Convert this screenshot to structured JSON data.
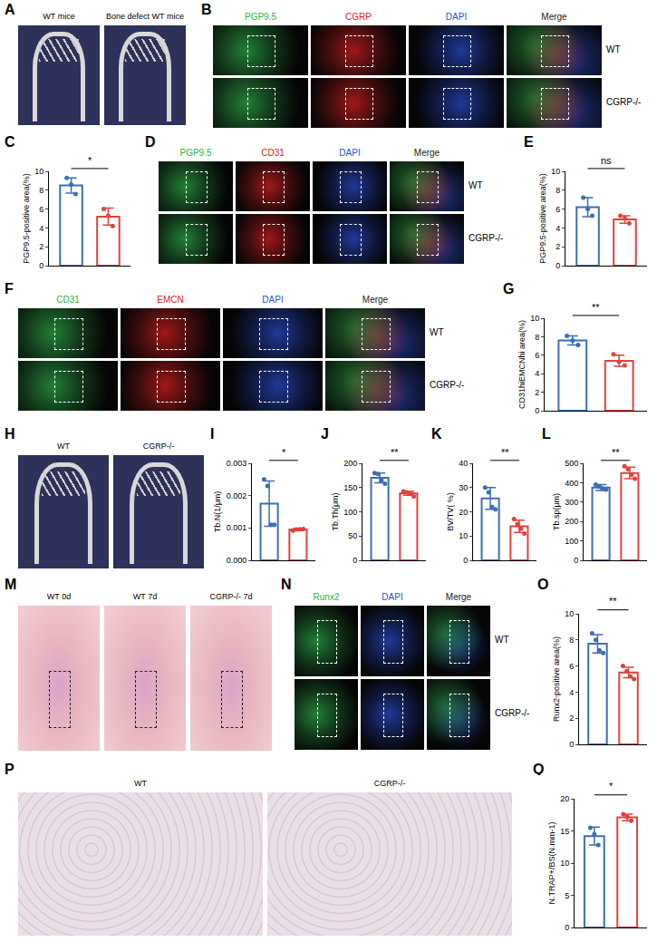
{
  "image_panels": [
    {
      "panel": "A",
      "kind": "microct",
      "labels": [
        "WT mice",
        "Bone defect WT mice"
      ]
    },
    {
      "panel": "B",
      "kind": "fluorescence",
      "channels": [
        {
          "name": "PGP9.5",
          "color": "#2db34a"
        },
        {
          "name": "CGRP",
          "color": "#e02020"
        },
        {
          "name": "DAPI",
          "color": "#2a4fd6"
        },
        {
          "name": "Merge",
          "color": "#222222"
        }
      ],
      "rows": [
        "WT",
        "CGRP-/-"
      ]
    },
    {
      "panel": "D",
      "kind": "fluorescence",
      "channels": [
        {
          "name": "PGP9.5",
          "color": "#2db34a"
        },
        {
          "name": "CD31",
          "color": "#e02020"
        },
        {
          "name": "DAPI",
          "color": "#2a4fd6"
        },
        {
          "name": "Merge",
          "color": "#222222"
        }
      ],
      "rows": [
        "WT",
        "CGRP-/-"
      ]
    },
    {
      "panel": "F",
      "kind": "fluorescence",
      "channels": [
        {
          "name": "CD31",
          "color": "#2db34a"
        },
        {
          "name": "EMCN",
          "color": "#e02020"
        },
        {
          "name": "DAPI",
          "color": "#2a4fd6"
        },
        {
          "name": "Merge",
          "color": "#222222"
        }
      ],
      "rows": [
        "WT",
        "CGRP-/-"
      ]
    },
    {
      "panel": "H",
      "kind": "microct",
      "labels": [
        "WT",
        "CGRP-/-"
      ]
    },
    {
      "panel": "M",
      "kind": "he",
      "labels": [
        "WT 0d",
        "WT 7d",
        "CGRP-/- 7d"
      ]
    },
    {
      "panel": "N",
      "kind": "fluorescence",
      "channels": [
        {
          "name": "Runx2",
          "color": "#2db34a"
        },
        {
          "name": "DAPI",
          "color": "#2a4fd6"
        },
        {
          "name": "Merge",
          "color": "#222222"
        }
      ],
      "rows": [
        "WT",
        "CGRP-/-"
      ]
    },
    {
      "panel": "P",
      "kind": "trap",
      "labels": [
        "WT",
        "CGRP-/-"
      ]
    }
  ],
  "chart_data": [
    {
      "panel": "C",
      "type": "bar",
      "y_label": "PGP9.5-positive area(%)",
      "categories": [
        null,
        null
      ],
      "values": [
        8.5,
        5.2
      ],
      "error": [
        0.8,
        0.9
      ],
      "points": [
        [
          9.3,
          8.6,
          7.6
        ],
        [
          6.0,
          5.3,
          4.2
        ]
      ],
      "colors": [
        "#3a6fb5",
        "#e0423e"
      ],
      "ylim": [
        0,
        10
      ],
      "yticks": [
        0,
        2,
        4,
        6,
        8,
        10
      ],
      "significance": "*",
      "grid": false
    },
    {
      "panel": "E",
      "type": "bar",
      "y_label": "PGP9.5-positive area(%)",
      "categories": [
        null,
        null
      ],
      "values": [
        6.2,
        4.9
      ],
      "error": [
        1.0,
        0.4
      ],
      "points": [
        [
          7.2,
          6.0,
          5.3
        ],
        [
          5.3,
          5.0,
          4.5
        ]
      ],
      "colors": [
        "#3a6fb5",
        "#e0423e"
      ],
      "ylim": [
        0,
        10
      ],
      "yticks": [
        0,
        2,
        4,
        6,
        8,
        10
      ],
      "significance": "ns",
      "grid": false
    },
    {
      "panel": "G",
      "type": "bar",
      "y_label": "CD31hiEMCNhi area(%)",
      "categories": [
        null,
        null
      ],
      "values": [
        7.6,
        5.4
      ],
      "error": [
        0.5,
        0.6
      ],
      "points": [
        [
          8.1,
          7.6,
          7.1
        ],
        [
          6.1,
          5.3,
          4.9
        ]
      ],
      "colors": [
        "#3a6fb5",
        "#e0423e"
      ],
      "ylim": [
        0,
        10
      ],
      "yticks": [
        0,
        2,
        4,
        6,
        8,
        10
      ],
      "significance": "**",
      "grid": false
    },
    {
      "panel": "I",
      "type": "bar",
      "y_label": "Tb.N(1/μm)",
      "categories": [
        null,
        null
      ],
      "values": [
        0.00175,
        0.00095
      ],
      "error": [
        0.0007,
        3e-05
      ],
      "points": [
        [
          0.0025,
          0.0023,
          0.0011,
          0.0011
        ],
        [
          0.00092,
          0.00095,
          0.00096,
          0.00097
        ]
      ],
      "colors": [
        "#3a6fb5",
        "#e0423e"
      ],
      "ylim": [
        0,
        0.003
      ],
      "yticks": [
        {
          "value": 0,
          "label": "0.000"
        },
        {
          "value": 0.001,
          "label": "0.001"
        },
        {
          "value": 0.002,
          "label": "0.002"
        },
        {
          "value": 0.003,
          "label": "0.003"
        }
      ],
      "significance": "*",
      "grid": false
    },
    {
      "panel": "J",
      "type": "bar",
      "y_label": "Tb.Th(μm)",
      "categories": [
        null,
        null
      ],
      "values": [
        170,
        138
      ],
      "error": [
        10,
        4
      ],
      "points": [
        [
          180,
          178,
          165,
          158
        ],
        [
          142,
          140,
          137,
          132
        ]
      ],
      "colors": [
        "#3a6fb5",
        "#e0423e"
      ],
      "ylim": [
        0,
        200
      ],
      "yticks": [
        0,
        50,
        100,
        150,
        200
      ],
      "significance": "**",
      "grid": false
    },
    {
      "panel": "K",
      "type": "bar",
      "y_label": "BV/TV( %)",
      "categories": [
        null,
        null
      ],
      "values": [
        25.5,
        14
      ],
      "error": [
        4.5,
        2.5
      ],
      "points": [
        [
          30,
          28,
          22,
          21
        ],
        [
          17,
          15,
          13,
          11
        ]
      ],
      "colors": [
        "#3a6fb5",
        "#e0423e"
      ],
      "ylim": [
        0,
        40
      ],
      "yticks": [
        0,
        10,
        20,
        30,
        40
      ],
      "significance": "**",
      "grid": false
    },
    {
      "panel": "L",
      "type": "bar",
      "y_label": "Tb.sp(μm)",
      "categories": [
        null,
        null
      ],
      "values": [
        375,
        450
      ],
      "error": [
        15,
        30
      ],
      "points": [
        [
          390,
          380,
          370,
          365
        ],
        [
          485,
          470,
          440,
          420
        ]
      ],
      "colors": [
        "#3a6fb5",
        "#e0423e"
      ],
      "ylim": [
        0,
        500
      ],
      "yticks": [
        0,
        100,
        200,
        300,
        400,
        500
      ],
      "significance": "**",
      "grid": false
    },
    {
      "panel": "O",
      "type": "bar",
      "y_label": "Runx2-positive area(%)",
      "categories": [
        null,
        null
      ],
      "values": [
        7.7,
        5.5
      ],
      "error": [
        0.7,
        0.4
      ],
      "points": [
        [
          8.5,
          8.0,
          7.2,
          7.0
        ],
        [
          6.0,
          5.6,
          5.2,
          5.0
        ]
      ],
      "colors": [
        "#3a6fb5",
        "#e0423e"
      ],
      "ylim": [
        0,
        10
      ],
      "yticks": [
        0,
        2,
        4,
        6,
        8,
        10
      ],
      "significance": "**",
      "grid": false
    },
    {
      "panel": "Q",
      "type": "bar",
      "y_label": "N.TRAP+/BS(N.mm-1)",
      "categories": [
        null,
        null
      ],
      "values": [
        14.2,
        17.1
      ],
      "error": [
        1.4,
        0.5
      ],
      "points": [
        [
          15.5,
          14.5,
          12.8
        ],
        [
          17.6,
          17.2,
          16.6
        ]
      ],
      "colors": [
        "#3a6fb5",
        "#e0423e"
      ],
      "ylim": [
        0,
        20
      ],
      "yticks": [
        0,
        5,
        10,
        15,
        20
      ],
      "significance": "*",
      "grid": false
    }
  ]
}
